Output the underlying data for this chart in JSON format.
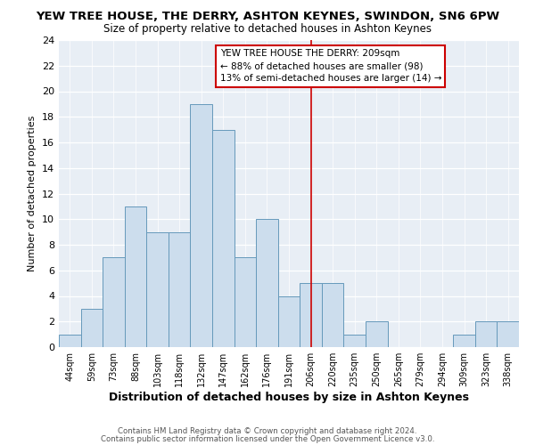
{
  "title": "YEW TREE HOUSE, THE DERRY, ASHTON KEYNES, SWINDON, SN6 6PW",
  "subtitle": "Size of property relative to detached houses in Ashton Keynes",
  "xlabel": "Distribution of detached houses by size in Ashton Keynes",
  "ylabel": "Number of detached properties",
  "bin_labels": [
    "44sqm",
    "59sqm",
    "73sqm",
    "88sqm",
    "103sqm",
    "118sqm",
    "132sqm",
    "147sqm",
    "162sqm",
    "176sqm",
    "191sqm",
    "206sqm",
    "220sqm",
    "235sqm",
    "250sqm",
    "265sqm",
    "279sqm",
    "294sqm",
    "309sqm",
    "323sqm",
    "338sqm"
  ],
  "bar_heights": [
    1,
    3,
    7,
    11,
    9,
    9,
    19,
    17,
    7,
    10,
    4,
    5,
    5,
    1,
    2,
    0,
    0,
    0,
    1,
    2,
    2
  ],
  "bar_color": "#ccdded",
  "bar_edgecolor": "#6699bb",
  "vline_x": 11,
  "vline_color": "#cc0000",
  "ylim": [
    0,
    24
  ],
  "yticks": [
    0,
    2,
    4,
    6,
    8,
    10,
    12,
    14,
    16,
    18,
    20,
    22,
    24
  ],
  "annotation_title": "YEW TREE HOUSE THE DERRY: 209sqm",
  "annotation_line1": "← 88% of detached houses are smaller (98)",
  "annotation_line2": "13% of semi-detached houses are larger (14) →",
  "footer1": "Contains HM Land Registry data © Crown copyright and database right 2024.",
  "footer2": "Contains public sector information licensed under the Open Government Licence v3.0.",
  "background_color": "#e8eef5"
}
